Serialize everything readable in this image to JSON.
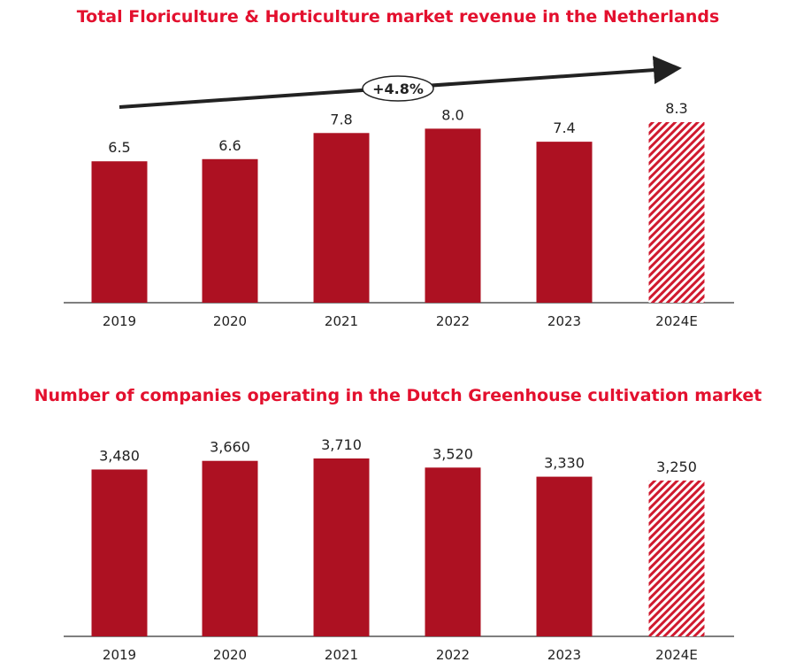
{
  "colors": {
    "bar": "#ad1122",
    "title": "#e3102e",
    "hatch": "#d0192e"
  },
  "chart_data": [
    {
      "type": "bar",
      "title": "Total Floriculture & Horticulture market revenue in the Netherlands",
      "categories": [
        "2019",
        "2020",
        "2021",
        "2022",
        "2023",
        "2024E"
      ],
      "values": [
        6.5,
        6.6,
        7.8,
        8.0,
        7.4,
        8.3
      ],
      "labels": [
        "6.5",
        "6.6",
        "7.8",
        "8.0",
        "7.4",
        "8.3"
      ],
      "estimated": [
        false,
        false,
        false,
        false,
        false,
        true
      ],
      "annotation": "+4.8%",
      "ylim": [
        0,
        8.3
      ],
      "grid": false
    },
    {
      "type": "bar",
      "title": "Number of companies operating in the Dutch Greenhouse cultivation market",
      "categories": [
        "2019",
        "2020",
        "2021",
        "2022",
        "2023",
        "2024E"
      ],
      "values": [
        3480,
        3660,
        3710,
        3520,
        3330,
        3250
      ],
      "labels": [
        "3,480",
        "3,660",
        "3,710",
        "3,520",
        "3,330",
        "3,250"
      ],
      "estimated": [
        false,
        false,
        false,
        false,
        false,
        true
      ],
      "ylim": [
        0,
        3710
      ],
      "grid": false
    }
  ]
}
